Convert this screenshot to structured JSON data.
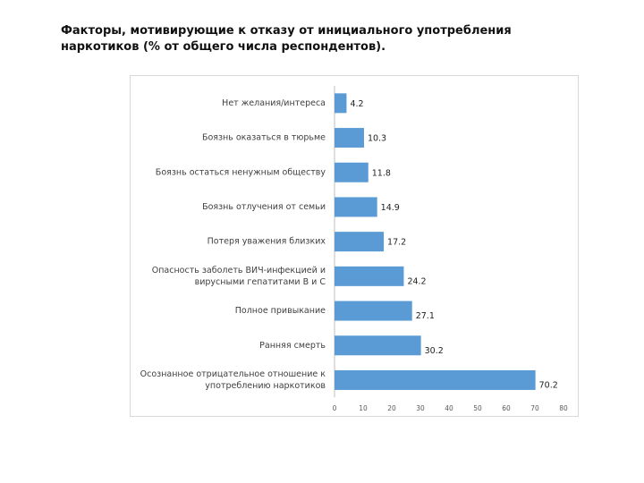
{
  "title": "Факторы, мотивирующие к отказу от инициального употребления наркотиков (% от общего числа респондентов).",
  "chart_data": {
    "type": "bar",
    "orientation": "horizontal",
    "title": "Факторы, мотивирующие к отказу от инициального употребления наркотиков (% от общего числа респондентов).",
    "xlabel": "",
    "ylabel": "",
    "xlim": [
      0,
      80
    ],
    "ticks": [
      0,
      10,
      20,
      30,
      40,
      50,
      60,
      70,
      80
    ],
    "grid": false,
    "bar_color": "#5b9bd5",
    "categories": [
      [
        "Нет желания/интереса"
      ],
      [
        "Боязнь оказаться в тюрьме"
      ],
      [
        "Боязнь остаться ненужным обществу"
      ],
      [
        "Боязнь отлучения от семьи"
      ],
      [
        "Потеря уважения близких"
      ],
      [
        "Опасность заболеть ВИЧ-инфекцией и",
        "вирусными гепатитами В и С"
      ],
      [
        "Полное привыкание"
      ],
      [
        "Ранняя смерть"
      ],
      [
        "Осознанное отрицательное отношение к",
        "употреблению наркотиков"
      ]
    ],
    "values": [
      4.2,
      10.3,
      11.8,
      14.9,
      17.2,
      24.2,
      27.1,
      30.2,
      70.2
    ]
  }
}
